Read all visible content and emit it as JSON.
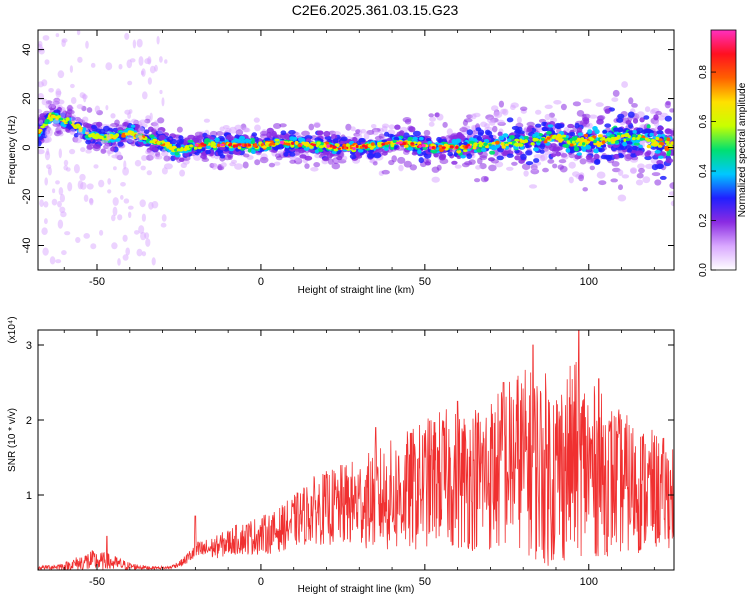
{
  "title": "C2E6.2025.361.03.15.G23",
  "chart_data": [
    {
      "type": "heatmap",
      "title": "C2E6.2025.361.03.15.G23",
      "xlabel": "Height of straight line (km)",
      "ylabel": "Frequency (Hz)",
      "xlim": [
        -68,
        126
      ],
      "ylim": [
        -50,
        48
      ],
      "xticks": [
        -50,
        0,
        50,
        100
      ],
      "yticks": [
        -40,
        -20,
        0,
        20,
        40
      ],
      "grid": false,
      "colorbar": {
        "label": "Normalized spectral amplitude",
        "range": [
          0,
          0.97
        ],
        "ticks": [
          "0.0",
          "0.2",
          "0.4",
          "0.6",
          "0.8"
        ],
        "colormap": [
          "#ffffff",
          "#d9a8ff",
          "#8a2be2",
          "#2020ff",
          "#00c8ff",
          "#00e070",
          "#c8ff00",
          "#ffe000",
          "#ff6000",
          "#ff1020",
          "#ff30c0"
        ]
      },
      "ridge": {
        "x": [
          -68,
          -64,
          -58,
          -52,
          -46,
          -40,
          -34,
          -30,
          -26,
          -22,
          -18,
          -12,
          -6,
          0,
          6,
          12,
          18,
          24,
          30,
          36,
          42,
          48,
          54,
          60,
          66,
          72,
          78,
          84,
          90,
          96,
          102,
          108,
          114,
          120,
          126
        ],
        "y": [
          6,
          13,
          10,
          5,
          4,
          6,
          3,
          2,
          -1,
          0,
          1,
          1,
          1,
          1,
          2,
          1,
          1,
          0,
          0,
          1,
          2,
          1,
          0,
          0,
          1,
          1,
          2,
          3,
          4,
          2,
          3,
          4,
          4,
          2,
          1
        ]
      }
    },
    {
      "type": "line",
      "xlabel": "Height of straight line (km)",
      "ylabel": "SNR (10 * v/v)",
      "y_multiplier": "(x10⁴)",
      "xlim": [
        -68,
        126
      ],
      "ylim": [
        0,
        3.2
      ],
      "xticks": [
        -50,
        0,
        50,
        100
      ],
      "yticks": [
        1,
        2,
        3
      ],
      "color": "#f03030",
      "envelope": {
        "x": [
          -68,
          -60,
          -52,
          -46,
          -40,
          -34,
          -28,
          -24,
          -20,
          -14,
          -8,
          -2,
          4,
          10,
          16,
          24,
          30,
          36,
          42,
          48,
          54,
          60,
          66,
          72,
          78,
          84,
          90,
          96,
          102,
          108,
          114,
          120,
          126
        ],
        "mean": [
          0.03,
          0.05,
          0.12,
          0.1,
          0.05,
          0.03,
          0.03,
          0.1,
          0.25,
          0.3,
          0.4,
          0.45,
          0.5,
          0.65,
          0.8,
          0.85,
          0.9,
          0.95,
          1.0,
          1.1,
          1.25,
          1.2,
          1.25,
          1.3,
          1.5,
          1.4,
          1.3,
          1.5,
          1.3,
          1.2,
          1.1,
          1.05,
          1.0
        ],
        "amp": [
          0.02,
          0.05,
          0.15,
          0.12,
          0.05,
          0.02,
          0.02,
          0.05,
          0.12,
          0.15,
          0.2,
          0.25,
          0.28,
          0.35,
          0.45,
          0.55,
          0.6,
          0.7,
          0.8,
          0.85,
          0.9,
          0.95,
          1.0,
          1.1,
          1.2,
          1.3,
          1.3,
          1.3,
          1.15,
          1.0,
          0.9,
          0.8,
          0.7
        ],
        "peaks": [
          [
            -47,
            0.45
          ],
          [
            -20,
            0.72
          ],
          [
            35,
            1.9
          ],
          [
            60,
            2.25
          ],
          [
            74,
            2.5
          ],
          [
            83,
            3.0
          ],
          [
            97,
            3.2
          ],
          [
            103,
            2.55
          ]
        ]
      }
    }
  ]
}
